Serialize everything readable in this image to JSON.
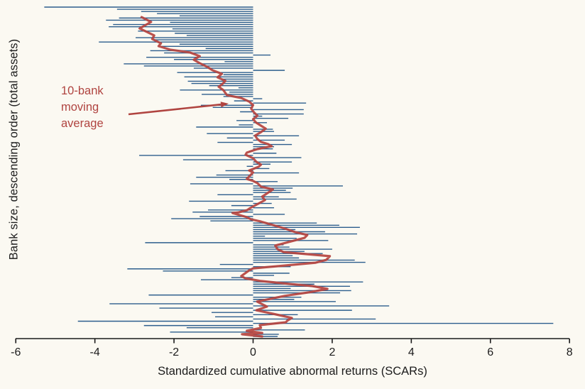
{
  "chart_data": {
    "type": "bar",
    "orientation": "horizontal",
    "title": "",
    "xlabel": "Standardized cumulative abnormal returns (SCARs)",
    "ylabel": "Bank size, descending order (total assets)",
    "xlim": [
      -6,
      8
    ],
    "x_ticks": [
      -6,
      -4,
      -2,
      0,
      2,
      4,
      6,
      8
    ],
    "x_tick_labels": [
      "-6",
      "-4",
      "-2",
      "0",
      "2",
      "4",
      "6",
      "8"
    ],
    "grid": false,
    "legend_position": "none",
    "n_banks": 152,
    "bar_values_by_rank": [
      -5.28,
      -3.44,
      -2.83,
      -2.43,
      -1.86,
      -3.39,
      -3.72,
      -2.1,
      -3.54,
      -3.65,
      -2.04,
      -2.91,
      -1.98,
      -1.68,
      -2.97,
      -2.52,
      -3.9,
      -1.86,
      -2.34,
      -1.2,
      -2.6,
      -2.25,
      0.44,
      -2.7,
      -2.0,
      -0.72,
      -3.27,
      -2.76,
      -1.5,
      0.8,
      -1.92,
      -0.75,
      -1.74,
      -0.78,
      -1.65,
      -1.56,
      -1.11,
      -0.37,
      -1.85,
      -0.6,
      -1.3,
      -0.75,
      0.23,
      -0.48,
      1.34,
      -1.32,
      -1.02,
      1.28,
      -0.33,
      1.28,
      0.23,
      0.89,
      -0.42,
      0.35,
      -0.36,
      -1.44,
      0.5,
      0.53,
      -1.17,
      1.16,
      -0.66,
      0.8,
      -0.9,
      0.98,
      0.53,
      0.5,
      -0.1,
      0.59,
      -2.88,
      1.22,
      -1.77,
      0.98,
      0.44,
      -0.16,
      0.41,
      -0.7,
      1.16,
      -0.93,
      -1.44,
      -0.6,
      0.62,
      -1.59,
      2.27,
      1.0,
      0.83,
      0.95,
      -0.9,
      0.65,
      1.1,
      -1.62,
      0.47,
      -0.55,
      0.53,
      -1.14,
      -1.53,
      0.8,
      -1.35,
      -2.07,
      -1.08,
      1.61,
      2.18,
      2.7,
      1.07,
      1.82,
      2.63,
      0.3,
      1.1,
      1.9,
      -2.73,
      0.77,
      0.92,
      2.0,
      1.3,
      1.76,
      1.0,
      1.16,
      2.57,
      2.84,
      -0.84,
      0.95,
      -3.18,
      -2.28,
      0.92,
      0.53,
      -0.55,
      -1.32,
      2.78,
      1.55,
      2.45,
      0.95,
      2.48,
      2.2,
      -2.64,
      1.22,
      1.04,
      2.09,
      -3.63,
      3.44,
      -2.37,
      2.5,
      -1.05,
      1.13,
      -0.96,
      3.1,
      -4.43,
      7.59,
      -2.76,
      -1.68,
      1.31,
      -2.1,
      0.65,
      0.62
    ],
    "moving_average": {
      "label": "10-bank moving average",
      "path_rank_value": [
        [
          4.6,
          -2.82
        ],
        [
          6.8,
          -2.58
        ],
        [
          9.8,
          -2.87
        ],
        [
          10.7,
          -2.76
        ],
        [
          13,
          -2.5
        ],
        [
          14.6,
          -2.55
        ],
        [
          16.6,
          -2.33
        ],
        [
          17.9,
          -2.39
        ],
        [
          19.5,
          -2.1
        ],
        [
          20.8,
          -1.6
        ],
        [
          22.5,
          -1.35
        ],
        [
          24.1,
          -1.5
        ],
        [
          25.7,
          -1.35
        ],
        [
          27.3,
          -1.17
        ],
        [
          29,
          -1.02
        ],
        [
          30.6,
          -0.79
        ],
        [
          32.2,
          -0.9
        ],
        [
          33.8,
          -0.7
        ],
        [
          35.5,
          -0.79
        ],
        [
          36.5,
          -0.87
        ],
        [
          38.1,
          -0.75
        ],
        [
          40.4,
          -0.66
        ],
        [
          41.7,
          -0.3
        ],
        [
          43.3,
          -0.1
        ],
        [
          44.9,
          0.0
        ],
        [
          46.5,
          -0.05
        ],
        [
          48.2,
          0.02
        ],
        [
          49.8,
          0.11
        ],
        [
          51.4,
          0.0
        ],
        [
          53,
          0.08
        ],
        [
          54.7,
          0.23
        ],
        [
          55.7,
          0.32
        ],
        [
          57.3,
          0.2
        ],
        [
          58.9,
          0.05
        ],
        [
          60.5,
          0.11
        ],
        [
          61.8,
          0.2
        ],
        [
          62.8,
          0.38
        ],
        [
          63.8,
          0.47
        ],
        [
          65.1,
          0.11
        ],
        [
          66.7,
          -0.16
        ],
        [
          67.7,
          -0.19
        ],
        [
          69.3,
          0.0
        ],
        [
          70.9,
          0.08
        ],
        [
          72.2,
          0.2
        ],
        [
          73.2,
          0.14
        ],
        [
          74.9,
          -0.1
        ],
        [
          75.8,
          0.0
        ],
        [
          77.1,
          -0.07
        ],
        [
          78.8,
          -0.16
        ],
        [
          79.7,
          0.0
        ],
        [
          80.7,
          0.11
        ],
        [
          82.3,
          0.2
        ],
        [
          83.6,
          0.5
        ],
        [
          86.9,
          0.23
        ],
        [
          88.5,
          0.3
        ],
        [
          92.1,
          -0.07
        ],
        [
          93.1,
          -0.15
        ],
        [
          94.1,
          -0.37
        ],
        [
          94.4,
          -0.52
        ],
        [
          96.3,
          -0.16
        ],
        [
          97.3,
          -0.05
        ],
        [
          98.3,
          0.2
        ],
        [
          99.9,
          0.5
        ],
        [
          101.5,
          0.8
        ],
        [
          103.2,
          1.07
        ],
        [
          104.5,
          1.37
        ],
        [
          105.8,
          1.3
        ],
        [
          107.7,
          0.9
        ],
        [
          109.3,
          0.56
        ],
        [
          111,
          0.62
        ],
        [
          112.3,
          0.77
        ],
        [
          114.2,
          1.94
        ],
        [
          115.9,
          1.85
        ],
        [
          117.2,
          1.58
        ],
        [
          119.8,
          0.0
        ],
        [
          120.7,
          -0.1
        ],
        [
          123.3,
          -0.3
        ],
        [
          124.3,
          -0.2
        ],
        [
          125.6,
          0.2
        ],
        [
          126.9,
          0.9
        ],
        [
          127.9,
          1.5
        ],
        [
          129.2,
          1.88
        ],
        [
          130.8,
          1.4
        ],
        [
          132.4,
          0.8
        ],
        [
          135,
          0.1
        ],
        [
          137.3,
          0.35
        ],
        [
          139,
          0.08
        ],
        [
          140.6,
          0.5
        ],
        [
          142.5,
          0.98
        ],
        [
          143.8,
          0.86
        ],
        [
          144.5,
          0.83
        ],
        [
          145.8,
          0.17
        ],
        [
          147.1,
          0.2
        ],
        [
          148.4,
          -0.16
        ],
        [
          149.4,
          0.23
        ],
        [
          150,
          -0.28
        ],
        [
          151,
          0.23
        ]
      ]
    },
    "annotation": {
      "line1": "10-bank",
      "line2": "moving",
      "line3": "average"
    },
    "colors": {
      "bar": "#2d5e8d",
      "moving_average": "#b5433f",
      "annotation_text": "#b04440",
      "axis": "#1a1a1a",
      "background": "#fbf9f2"
    }
  }
}
